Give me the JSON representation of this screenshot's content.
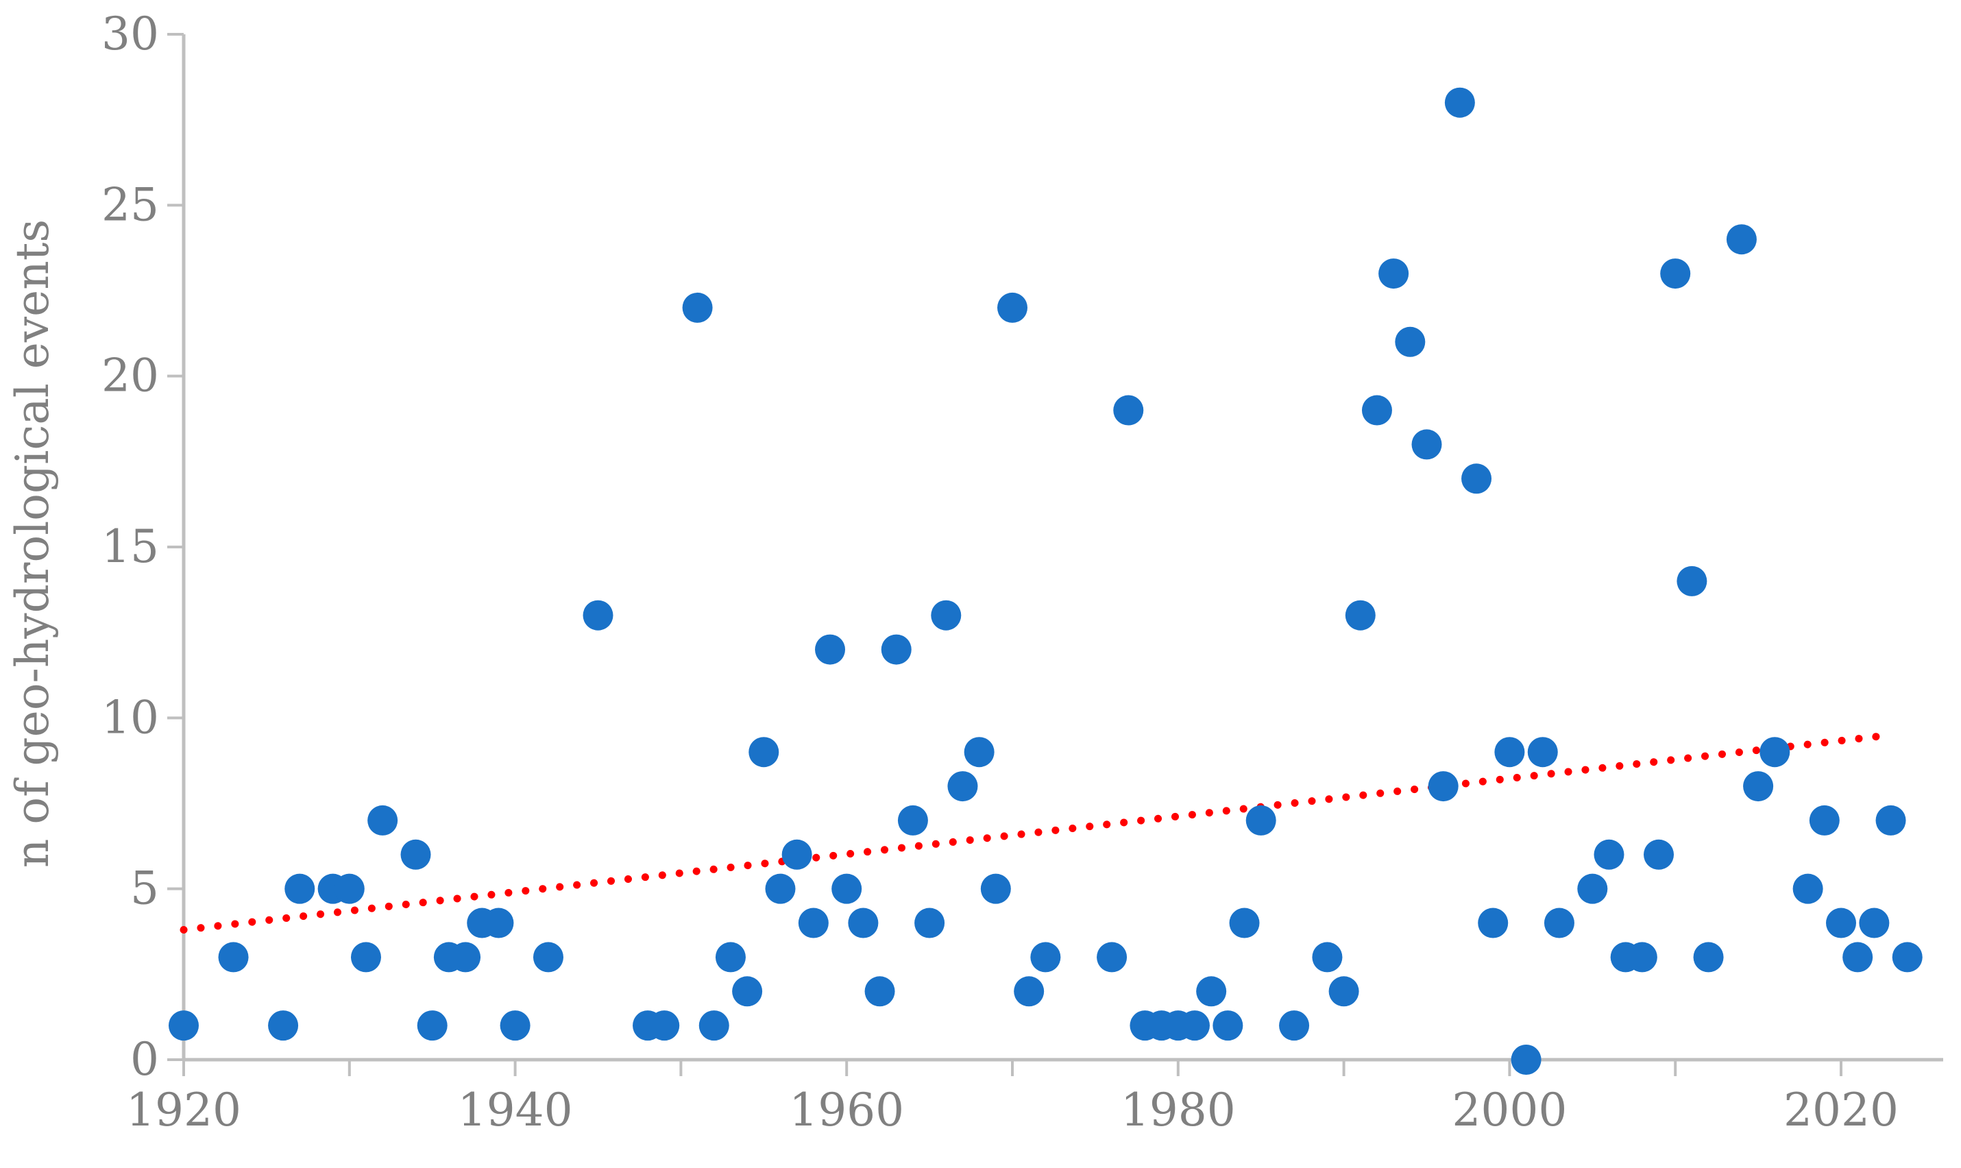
{
  "chart_data": {
    "type": "scatter",
    "title": "",
    "xlabel": "",
    "ylabel": "n of geo-hydrological events",
    "xlim": [
      1920,
      2024
    ],
    "ylim": [
      0,
      30
    ],
    "xticks": [
      1920,
      1940,
      1960,
      1980,
      2000,
      2020
    ],
    "yticks": [
      0,
      5,
      10,
      15,
      20,
      25,
      30
    ],
    "grid": false,
    "legend": "none",
    "marker_color": "#1a72c8",
    "trend_color": "#ff0000",
    "trendline": {
      "type": "linear",
      "style": "dotted",
      "x": [
        1920,
        2023
      ],
      "y": [
        3.8,
        9.5
      ]
    },
    "series": [
      {
        "x": [
          1920,
          1923,
          1926,
          1927,
          1929,
          1930,
          1931,
          1932,
          1934,
          1935,
          1936,
          1937,
          1938,
          1939,
          1940,
          1942,
          1945,
          1948,
          1949,
          1951,
          1952,
          1953,
          1954,
          1955,
          1956,
          1957,
          1958,
          1959,
          1960,
          1961,
          1962,
          1963,
          1964,
          1965,
          1966,
          1967,
          1968,
          1969,
          1970,
          1971,
          1972,
          1976,
          1977,
          1978,
          1979,
          1980,
          1981,
          1982,
          1983,
          1984,
          1985,
          1987,
          1989,
          1990,
          1991,
          1992,
          1993,
          1994,
          1995,
          1996,
          1997,
          1998,
          1999,
          2000,
          2001,
          2002,
          2003,
          2005,
          2006,
          2007,
          2008,
          2009,
          2010,
          2011,
          2012,
          2014,
          2015,
          2016,
          2018,
          2019,
          2020,
          2021,
          2022,
          2023,
          2024
        ],
        "y": [
          1,
          3,
          1,
          5,
          5,
          5,
          3,
          7,
          6,
          1,
          3,
          3,
          4,
          4,
          1,
          3,
          13,
          1,
          1,
          22,
          1,
          3,
          2,
          9,
          5,
          6,
          4,
          12,
          5,
          4,
          2,
          12,
          7,
          4,
          13,
          8,
          9,
          5,
          22,
          2,
          3,
          3,
          19,
          1,
          1,
          1,
          1,
          2,
          1,
          4,
          7,
          1,
          3,
          2,
          13,
          19,
          23,
          21,
          18,
          8,
          28,
          17,
          4,
          9,
          0,
          9,
          4,
          5,
          6,
          3,
          3,
          6,
          23,
          14,
          3,
          24,
          8,
          9,
          5,
          7,
          4,
          3,
          4,
          7,
          3
        ]
      }
    ]
  }
}
